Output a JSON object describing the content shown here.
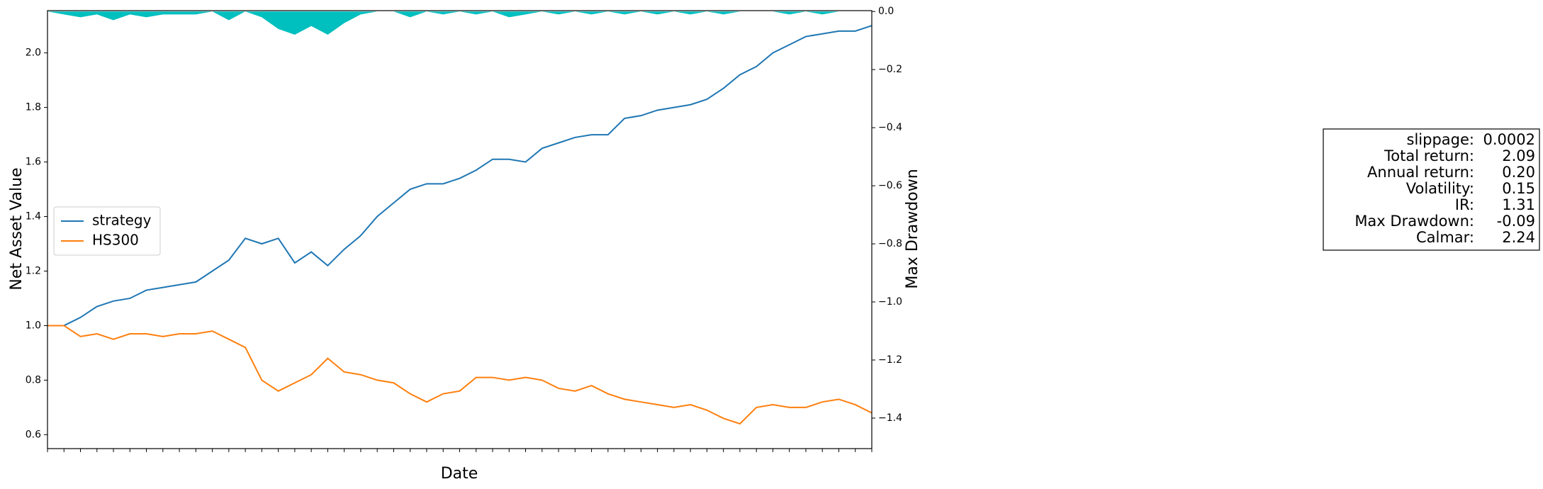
{
  "chart_data": {
    "type": "line",
    "xlabel": "Date",
    "ylabel": "Net Asset Value",
    "y2label": "Max Drawdown",
    "categories": [
      null,
      null,
      null,
      null,
      null,
      null,
      null,
      null,
      null,
      null,
      null,
      null,
      null,
      null,
      null,
      null,
      null,
      null,
      null,
      null,
      null,
      null,
      null,
      null,
      null,
      null,
      null,
      null,
      null,
      null,
      null,
      null,
      null,
      null,
      null,
      null,
      null,
      null,
      null,
      null,
      null,
      null,
      null,
      null,
      null,
      null,
      null,
      null,
      null,
      null,
      null
    ],
    "ylim": [
      0.549,
      2.155
    ],
    "yticks": [
      0.6,
      0.8,
      {
        "value": 1.0,
        "label": "1.0"
      },
      1.2,
      1.4,
      1.6,
      1.8,
      {
        "value": 2.0,
        "label": "2.0"
      }
    ],
    "y2lim": [
      -1.505,
      0.003
    ],
    "y2ticks": [
      {
        "value": 0.0,
        "label": "0.0"
      },
      {
        "value": -0.2,
        "label": "−0.2"
      },
      {
        "value": -0.4,
        "label": "−0.4"
      },
      {
        "value": -0.6,
        "label": "−0.6"
      },
      {
        "value": -0.8,
        "label": "−0.8"
      },
      {
        "value": -1.0,
        "label": "−1.0"
      },
      {
        "value": -1.2,
        "label": "−1.2"
      },
      {
        "value": -1.4,
        "label": "−1.4"
      }
    ],
    "legend": "center left",
    "series": [
      {
        "name": "strategy",
        "color": "#1f77b4",
        "values": [
          1.0,
          1.0,
          1.03,
          1.07,
          1.09,
          1.1,
          1.13,
          1.14,
          1.15,
          1.16,
          1.2,
          1.24,
          1.32,
          1.3,
          1.32,
          1.23,
          1.27,
          1.22,
          1.28,
          1.33,
          1.4,
          1.45,
          1.5,
          1.52,
          1.52,
          1.54,
          1.57,
          1.61,
          1.61,
          1.6,
          1.65,
          1.67,
          1.69,
          1.7,
          1.7,
          1.76,
          1.77,
          1.79,
          1.8,
          1.81,
          1.83,
          1.87,
          1.92,
          1.95,
          2.0,
          2.03,
          2.06,
          2.07,
          2.08,
          2.08,
          2.1
        ]
      },
      {
        "name": "HS300",
        "color": "#ff7f0e",
        "values": [
          1.0,
          1.0,
          0.96,
          0.97,
          0.95,
          0.97,
          0.97,
          0.96,
          0.97,
          0.97,
          0.98,
          0.95,
          0.92,
          0.8,
          0.76,
          0.79,
          0.82,
          0.88,
          0.83,
          0.82,
          0.8,
          0.79,
          0.75,
          0.72,
          0.75,
          0.76,
          0.81,
          0.81,
          0.8,
          0.81,
          0.8,
          0.77,
          0.76,
          0.78,
          0.75,
          0.73,
          0.72,
          0.71,
          0.7,
          0.71,
          0.69,
          0.66,
          0.64,
          0.7,
          0.71,
          0.7,
          0.7,
          0.72,
          0.73,
          0.71,
          0.68
        ]
      },
      {
        "type": "area",
        "axis": "y2",
        "color": "#00bfbf",
        "values": [
          0,
          -0.01,
          -0.02,
          -0.01,
          -0.03,
          -0.01,
          -0.02,
          -0.01,
          -0.01,
          -0.01,
          0,
          -0.03,
          0,
          -0.02,
          -0.06,
          -0.08,
          -0.05,
          -0.08,
          -0.04,
          -0.01,
          0,
          0,
          -0.02,
          0,
          -0.01,
          0,
          -0.01,
          0,
          -0.02,
          -0.01,
          0,
          -0.01,
          0,
          -0.01,
          0,
          -0.01,
          0,
          -0.01,
          0,
          -0.01,
          0,
          -0.01,
          0,
          0,
          0,
          -0.01,
          0,
          -0.01,
          0,
          0,
          0
        ]
      }
    ],
    "stats": [
      {
        "label": "slippage:",
        "value": "0.0002"
      },
      {
        "label": "Total return:",
        "value": "2.09"
      },
      {
        "label": "Annual return:",
        "value": "0.20"
      },
      {
        "label": "Volatility:",
        "value": "0.15"
      },
      {
        "label": "IR:",
        "value": "1.31"
      },
      {
        "label": "Max Drawdown:",
        "value": "-0.09"
      },
      {
        "label": "Calmar:",
        "value": "2.24"
      }
    ]
  }
}
